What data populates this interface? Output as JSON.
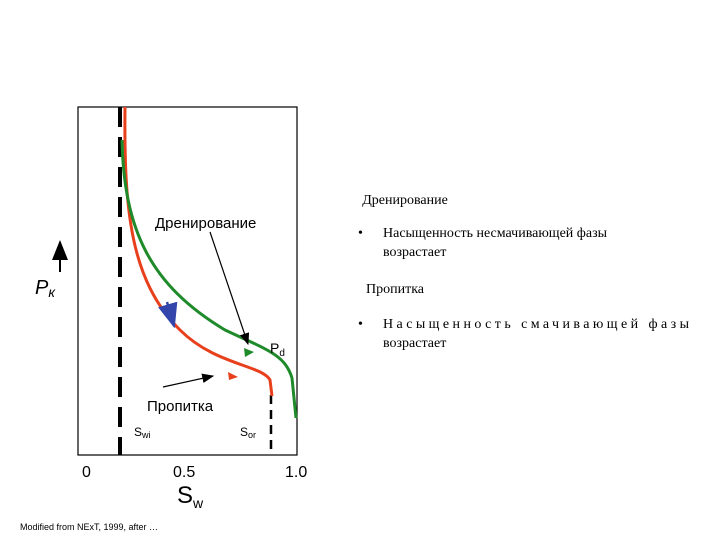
{
  "diagram": {
    "y_label": {
      "main": "P",
      "sub": "к"
    },
    "x_label": {
      "main": "S",
      "sub": "w"
    },
    "x_ticks": [
      "0",
      "0.5",
      "1.0"
    ],
    "curve_labels": {
      "drainage": "Дренирование",
      "imbibition": "Пропитка"
    },
    "points": {
      "pd": {
        "main": "P",
        "sub": "d"
      },
      "swi": {
        "main": "S",
        "sub": "wi"
      },
      "sor": {
        "main": "S",
        "sub": "or"
      }
    }
  },
  "notes": [
    {
      "heading": "Дренирование",
      "bullet": "•",
      "lines": [
        "Насыщенность несмачивающей фазы",
        "возрастает"
      ]
    },
    {
      "heading": "Пропитка",
      "bullet": "•",
      "lines": [
        "Насыщенность смачивающей фазы",
        "возрастает"
      ]
    }
  ],
  "footnote": "Modified from NExT, 1999, after …"
}
